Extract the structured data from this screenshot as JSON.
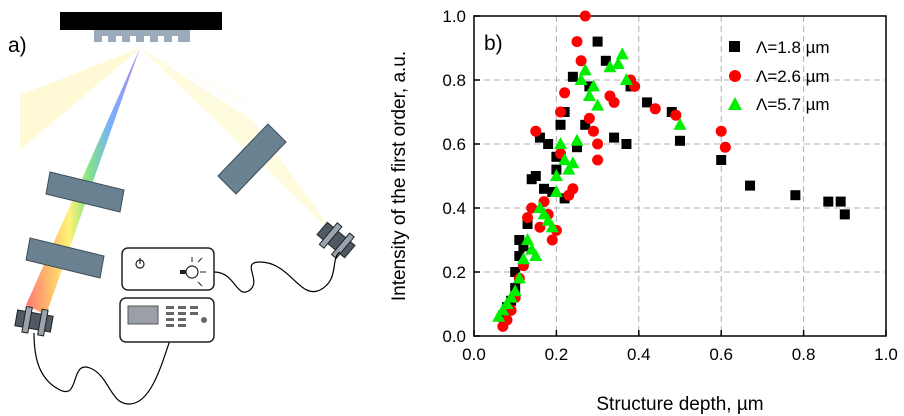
{
  "panel_a": {
    "label": "a)"
  },
  "chart_data": {
    "type": "scatter",
    "panel_label": "b)",
    "xlabel": "Structure depth, µm",
    "ylabel": "Intensity of the first order, a.u.",
    "xlim": [
      0.0,
      1.0
    ],
    "ylim": [
      0.0,
      1.0
    ],
    "xticks": [
      "0.0",
      "0.2",
      "0.4",
      "0.6",
      "0.8",
      "1.0"
    ],
    "yticks": [
      "0.0",
      "0.2",
      "0.4",
      "0.6",
      "0.8",
      "1.0"
    ],
    "grid": true,
    "legend_position": "top-right",
    "series": [
      {
        "name": "Λ=1.8 µm",
        "marker": "square",
        "color": "#000000",
        "points": [
          [
            0.07,
            0.06
          ],
          [
            0.08,
            0.09
          ],
          [
            0.09,
            0.11
          ],
          [
            0.1,
            0.15
          ],
          [
            0.1,
            0.2
          ],
          [
            0.11,
            0.25
          ],
          [
            0.11,
            0.3
          ],
          [
            0.12,
            0.28
          ],
          [
            0.13,
            0.35
          ],
          [
            0.14,
            0.49
          ],
          [
            0.15,
            0.5
          ],
          [
            0.16,
            0.62
          ],
          [
            0.17,
            0.46
          ],
          [
            0.18,
            0.6
          ],
          [
            0.19,
            0.45
          ],
          [
            0.2,
            0.52
          ],
          [
            0.2,
            0.56
          ],
          [
            0.21,
            0.66
          ],
          [
            0.22,
            0.7
          ],
          [
            0.22,
            0.43
          ],
          [
            0.24,
            0.81
          ],
          [
            0.25,
            0.59
          ],
          [
            0.27,
            0.66
          ],
          [
            0.28,
            0.78
          ],
          [
            0.3,
            0.92
          ],
          [
            0.32,
            0.86
          ],
          [
            0.34,
            0.62
          ],
          [
            0.37,
            0.6
          ],
          [
            0.38,
            0.78
          ],
          [
            0.42,
            0.73
          ],
          [
            0.48,
            0.7
          ],
          [
            0.5,
            0.61
          ],
          [
            0.6,
            0.55
          ],
          [
            0.67,
            0.47
          ],
          [
            0.78,
            0.44
          ],
          [
            0.86,
            0.42
          ],
          [
            0.89,
            0.42
          ],
          [
            0.9,
            0.38
          ]
        ]
      },
      {
        "name": "Λ=2.6 µm",
        "marker": "circle",
        "color": "#ff0000",
        "points": [
          [
            0.07,
            0.03
          ],
          [
            0.08,
            0.05
          ],
          [
            0.09,
            0.08
          ],
          [
            0.1,
            0.12
          ],
          [
            0.11,
            0.18
          ],
          [
            0.12,
            0.22
          ],
          [
            0.13,
            0.37
          ],
          [
            0.14,
            0.4
          ],
          [
            0.15,
            0.64
          ],
          [
            0.16,
            0.34
          ],
          [
            0.17,
            0.42
          ],
          [
            0.18,
            0.38
          ],
          [
            0.19,
            0.3
          ],
          [
            0.2,
            0.33
          ],
          [
            0.21,
            0.57
          ],
          [
            0.21,
            0.7
          ],
          [
            0.22,
            0.76
          ],
          [
            0.23,
            0.44
          ],
          [
            0.24,
            0.46
          ],
          [
            0.25,
            0.92
          ],
          [
            0.26,
            0.86
          ],
          [
            0.27,
            1.0
          ],
          [
            0.28,
            0.68
          ],
          [
            0.29,
            0.64
          ],
          [
            0.3,
            0.55
          ],
          [
            0.3,
            0.6
          ],
          [
            0.33,
            0.75
          ],
          [
            0.34,
            0.73
          ],
          [
            0.38,
            0.8
          ],
          [
            0.39,
            0.78
          ],
          [
            0.44,
            0.71
          ],
          [
            0.49,
            0.69
          ],
          [
            0.6,
            0.64
          ],
          [
            0.61,
            0.59
          ]
        ]
      },
      {
        "name": "Λ=5.7 µm",
        "marker": "triangle",
        "color": "#00ee00",
        "points": [
          [
            0.06,
            0.06
          ],
          [
            0.07,
            0.08
          ],
          [
            0.08,
            0.1
          ],
          [
            0.09,
            0.12
          ],
          [
            0.1,
            0.14
          ],
          [
            0.11,
            0.18
          ],
          [
            0.12,
            0.24
          ],
          [
            0.13,
            0.3
          ],
          [
            0.14,
            0.27
          ],
          [
            0.15,
            0.25
          ],
          [
            0.16,
            0.4
          ],
          [
            0.17,
            0.38
          ],
          [
            0.18,
            0.36
          ],
          [
            0.19,
            0.34
          ],
          [
            0.2,
            0.45
          ],
          [
            0.2,
            0.5
          ],
          [
            0.21,
            0.6
          ],
          [
            0.22,
            0.55
          ],
          [
            0.23,
            0.52
          ],
          [
            0.24,
            0.54
          ],
          [
            0.25,
            0.61
          ],
          [
            0.26,
            0.8
          ],
          [
            0.27,
            0.83
          ],
          [
            0.28,
            0.75
          ],
          [
            0.29,
            0.78
          ],
          [
            0.3,
            0.72
          ],
          [
            0.33,
            0.84
          ],
          [
            0.35,
            0.85
          ],
          [
            0.36,
            0.88
          ],
          [
            0.37,
            0.8
          ],
          [
            0.5,
            0.66
          ]
        ]
      }
    ]
  }
}
